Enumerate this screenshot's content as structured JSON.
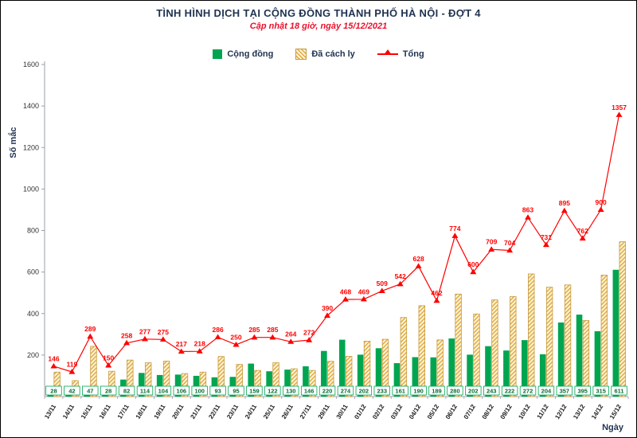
{
  "header": {
    "title": "TÌNH HÌNH DỊCH TẠI CỘNG ĐỒNG THÀNH PHỐ HÀ NỘI - ĐỢT 4",
    "subtitle": "Cập nhật 18 giờ, ngày 15/12/2021"
  },
  "legend": {
    "position": "top",
    "items": [
      {
        "label": "Cộng đồng",
        "swatch": "solid-green-square"
      },
      {
        "label": "Đã cách ly",
        "swatch": "diagonal-hatch-gold-square"
      },
      {
        "label": "Tổng",
        "swatch": "red-line-with-triangle-marker"
      }
    ]
  },
  "colors": {
    "title_navy": "#1f3250",
    "subtitle_red": "#e8112d",
    "community_green": "#00a550",
    "quarantine_hatch_gold": "#dfa93d",
    "quarantine_bg_cream": "#fdf3d8",
    "quarantine_border": "#c49b3f",
    "total_red": "#ff0000",
    "axis_gray": "#9aa0a6"
  },
  "chart_data": {
    "type": "combo-bar-line",
    "title": "TÌNH HÌNH DỊCH TẠI CỘNG ĐỒNG THÀNH PHỐ HÀ NỘI - ĐỢT 4",
    "subtitle": "Cập nhật 18 giờ, ngày 15/12/2021",
    "xlabel": "Ngày",
    "ylabel": "Số mắc",
    "ylim": [
      0,
      1600
    ],
    "yticks": [
      200,
      400,
      600,
      800,
      1000,
      1200,
      1400,
      1600
    ],
    "grid": false,
    "legend_position": "top",
    "categories": [
      "13/11",
      "14/11",
      "15/11",
      "16/11",
      "17/11",
      "18/11",
      "19/11",
      "20/11",
      "21/11",
      "22/11",
      "23/11",
      "24/11",
      "25/11",
      "26/11",
      "27/11",
      "29/11",
      "30/11",
      "01/12",
      "02/12",
      "03/12",
      "04/12",
      "05/12",
      "06/12",
      "07/12",
      "08/12",
      "09/12",
      "10/12",
      "11/12",
      "12/12",
      "13/12",
      "14/12",
      "15/12"
    ],
    "series": [
      {
        "name": "Cộng đồng",
        "type": "bar",
        "color": "#00a550",
        "data_labels": "boxed-at-baseline",
        "values": [
          28,
          42,
          47,
          28,
          82,
          114,
          104,
          106,
          100,
          93,
          95,
          159,
          122,
          130,
          146,
          220,
          274,
          202,
          233,
          161,
          190,
          189,
          280,
          202,
          243,
          222,
          272,
          204,
          357,
          395,
          315,
          611
        ]
      },
      {
        "name": "Đã cách ly",
        "type": "bar",
        "style": "diagonal-hatch",
        "color": "#dfa93d",
        "bg": "#fdf3d8",
        "border": "#c49b3f",
        "values": [
          118,
          77,
          242,
          122,
          176,
          163,
          171,
          111,
          118,
          193,
          155,
          126,
          163,
          134,
          126,
          170,
          194,
          267,
          276,
          381,
          438,
          273,
          494,
          398,
          466,
          482,
          591,
          527,
          538,
          367,
          585,
          746
        ]
      },
      {
        "name": "Tổng",
        "type": "line",
        "marker": "triangle",
        "color": "#ff0000",
        "data_labels": "above-points",
        "values": [
          146,
          119,
          289,
          150,
          258,
          277,
          275,
          217,
          218,
          286,
          250,
          285,
          285,
          264,
          272,
          390,
          468,
          469,
          509,
          542,
          628,
          462,
          774,
          600,
          709,
          704,
          863,
          731,
          895,
          762,
          900,
          1357
        ]
      }
    ]
  }
}
